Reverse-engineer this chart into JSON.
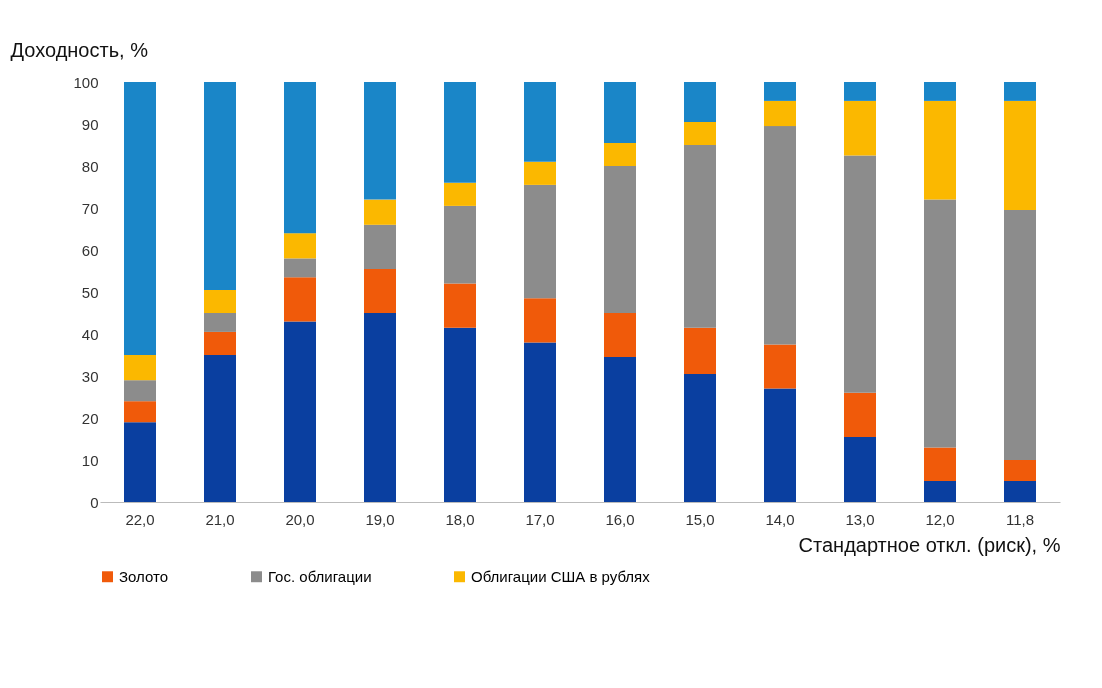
{
  "chart_data": {
    "type": "bar",
    "stacked": true,
    "ylabel": "Доходность, %",
    "xlabel": "Стандартное откл. (риск), %",
    "categories": [
      "22,0",
      "21,0",
      "20,0",
      "19,0",
      "18,0",
      "17,0",
      "16,0",
      "15,0",
      "14,0",
      "13,0",
      "12,0",
      "11,8"
    ],
    "ylim": [
      0,
      100
    ],
    "yticks": [
      0,
      10,
      20,
      30,
      40,
      50,
      60,
      70,
      80,
      90,
      100
    ],
    "legend": "bottom",
    "grid": false,
    "series": [
      {
        "color": "#0a3fa0",
        "values": [
          19,
          35,
          43,
          45,
          41.5,
          38,
          34.5,
          30.5,
          27,
          15.5,
          5,
          5
        ]
      },
      {
        "name": "Золото",
        "color": "#f05a0a",
        "values": [
          5,
          5.5,
          10.5,
          10.5,
          10.5,
          10.5,
          10.5,
          11,
          10.5,
          10.5,
          8,
          5
        ]
      },
      {
        "name": "Гос. облигации",
        "color": "#8c8c8c",
        "values": [
          5,
          4.5,
          4.5,
          10.5,
          18.5,
          27,
          35,
          43.5,
          52,
          56.5,
          59,
          59.5
        ]
      },
      {
        "name": "Облигации США в рублях",
        "color": "#fbb800",
        "values": [
          6,
          5.5,
          6,
          6,
          5.5,
          5.5,
          5.5,
          5.5,
          6,
          13,
          23.5,
          26
        ]
      },
      {
        "color": "#1a86c8",
        "values": [
          65,
          49.5,
          36,
          28,
          24,
          19,
          14.5,
          9.5,
          4.5,
          4.5,
          4.5,
          4.5
        ]
      }
    ]
  }
}
